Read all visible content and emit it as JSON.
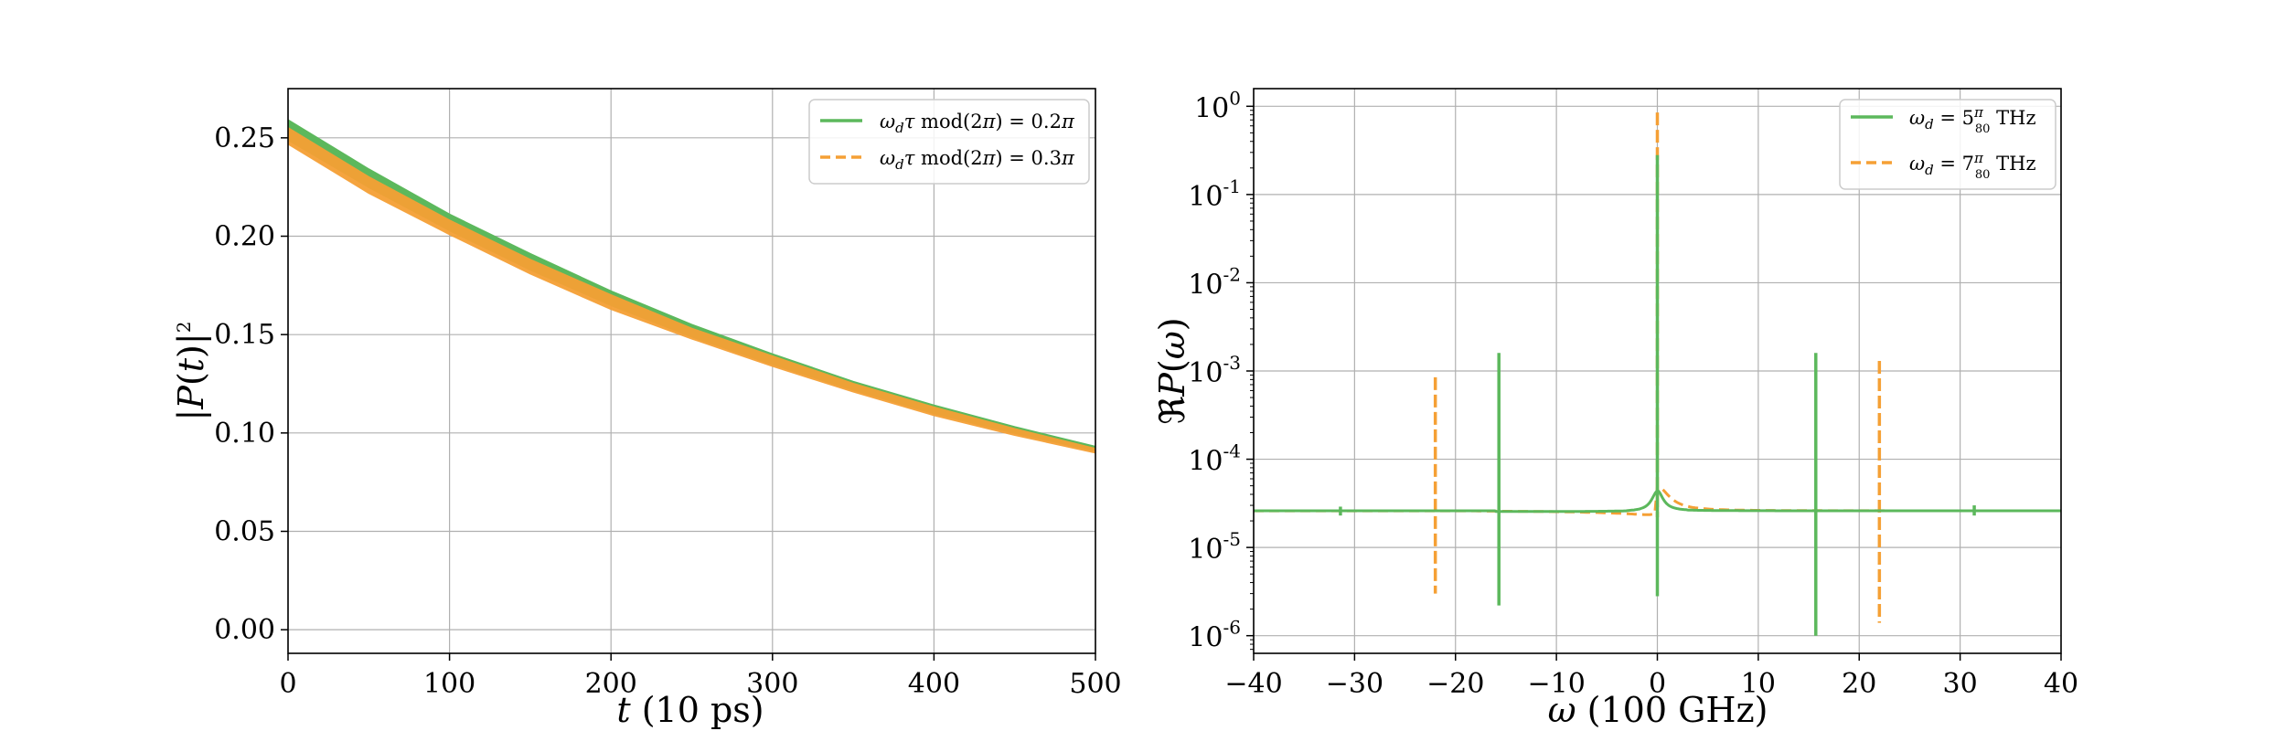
{
  "chart_data": [
    {
      "type": "line",
      "xlabel": "t (10 ps)",
      "ylabel": "|P(t)|²",
      "xlim": [
        0,
        500
      ],
      "ylim": [
        -0.012,
        0.275
      ],
      "x_ticks": [
        "0",
        "100",
        "200",
        "300",
        "400",
        "500"
      ],
      "y_ticks": [
        "0.00",
        "0.05",
        "0.10",
        "0.15",
        "0.20",
        "0.25"
      ],
      "grid": true,
      "legend_position": "top-right",
      "series": [
        {
          "name": "ω_d τ mod(2π) = 0.2π",
          "color": "#5cb85c",
          "style": "solid",
          "x": [
            0,
            50,
            100,
            150,
            200,
            250,
            300,
            350,
            400,
            450,
            500
          ],
          "y_upper": [
            0.259,
            0.234,
            0.211,
            0.191,
            0.172,
            0.155,
            0.14,
            0.126,
            0.114,
            0.103,
            0.093
          ],
          "y_lower": [
            0.249,
            0.225,
            0.203,
            0.183,
            0.165,
            0.149,
            0.135,
            0.122,
            0.11,
            0.1,
            0.091
          ]
        },
        {
          "name": "ω_d τ mod(2π) = 0.3π",
          "color": "#f5a035",
          "style": "dashed",
          "x": [
            0,
            50,
            100,
            150,
            200,
            250,
            300,
            350,
            400,
            450,
            500
          ],
          "y_upper": [
            0.255,
            0.23,
            0.208,
            0.188,
            0.17,
            0.153,
            0.139,
            0.125,
            0.113,
            0.102,
            0.092
          ],
          "y_lower": [
            0.247,
            0.222,
            0.201,
            0.181,
            0.163,
            0.148,
            0.134,
            0.121,
            0.109,
            0.099,
            0.09
          ]
        }
      ]
    },
    {
      "type": "line",
      "xlabel": "ω (100 GHz)",
      "ylabel": "ℜP(ω)",
      "xlim": [
        -40,
        40
      ],
      "ylim_log10": [
        -6.2,
        0.2
      ],
      "yscale": "log",
      "x_ticks": [
        "−40",
        "−30",
        "−20",
        "−10",
        "0",
        "10",
        "20",
        "30",
        "40"
      ],
      "y_ticks": [
        "0",
        "-1",
        "-2",
        "-3",
        "-4",
        "-5",
        "-6"
      ],
      "grid": true,
      "legend_position": "top-right",
      "baseline": 2.6e-05,
      "series": [
        {
          "name": "ω_d = 5π/80 THz",
          "color": "#5cb85c",
          "style": "solid",
          "spikes": [
            {
              "x": -31.4,
              "top": 2.9e-05,
              "bottom": 2.3e-05
            },
            {
              "x": -15.7,
              "top": 0.0016,
              "bottom": 2.2e-06
            },
            {
              "x": 0,
              "top": 0.28,
              "bottom": 2.8e-06
            },
            {
              "x": 15.7,
              "top": 0.0016,
              "bottom": 1e-06
            },
            {
              "x": 31.4,
              "top": 3e-05,
              "bottom": 2.3e-05
            }
          ]
        },
        {
          "name": "ω_d = 7π/80 THz",
          "color": "#f5a035",
          "style": "dashed",
          "spikes": [
            {
              "x": -22.0,
              "top": 0.00085,
              "bottom": 3e-06
            },
            {
              "x": 0,
              "top": 0.85,
              "bottom": 2.2e-05
            },
            {
              "x": 22.0,
              "top": 0.0013,
              "bottom": 1.4e-06
            }
          ]
        }
      ]
    }
  ]
}
